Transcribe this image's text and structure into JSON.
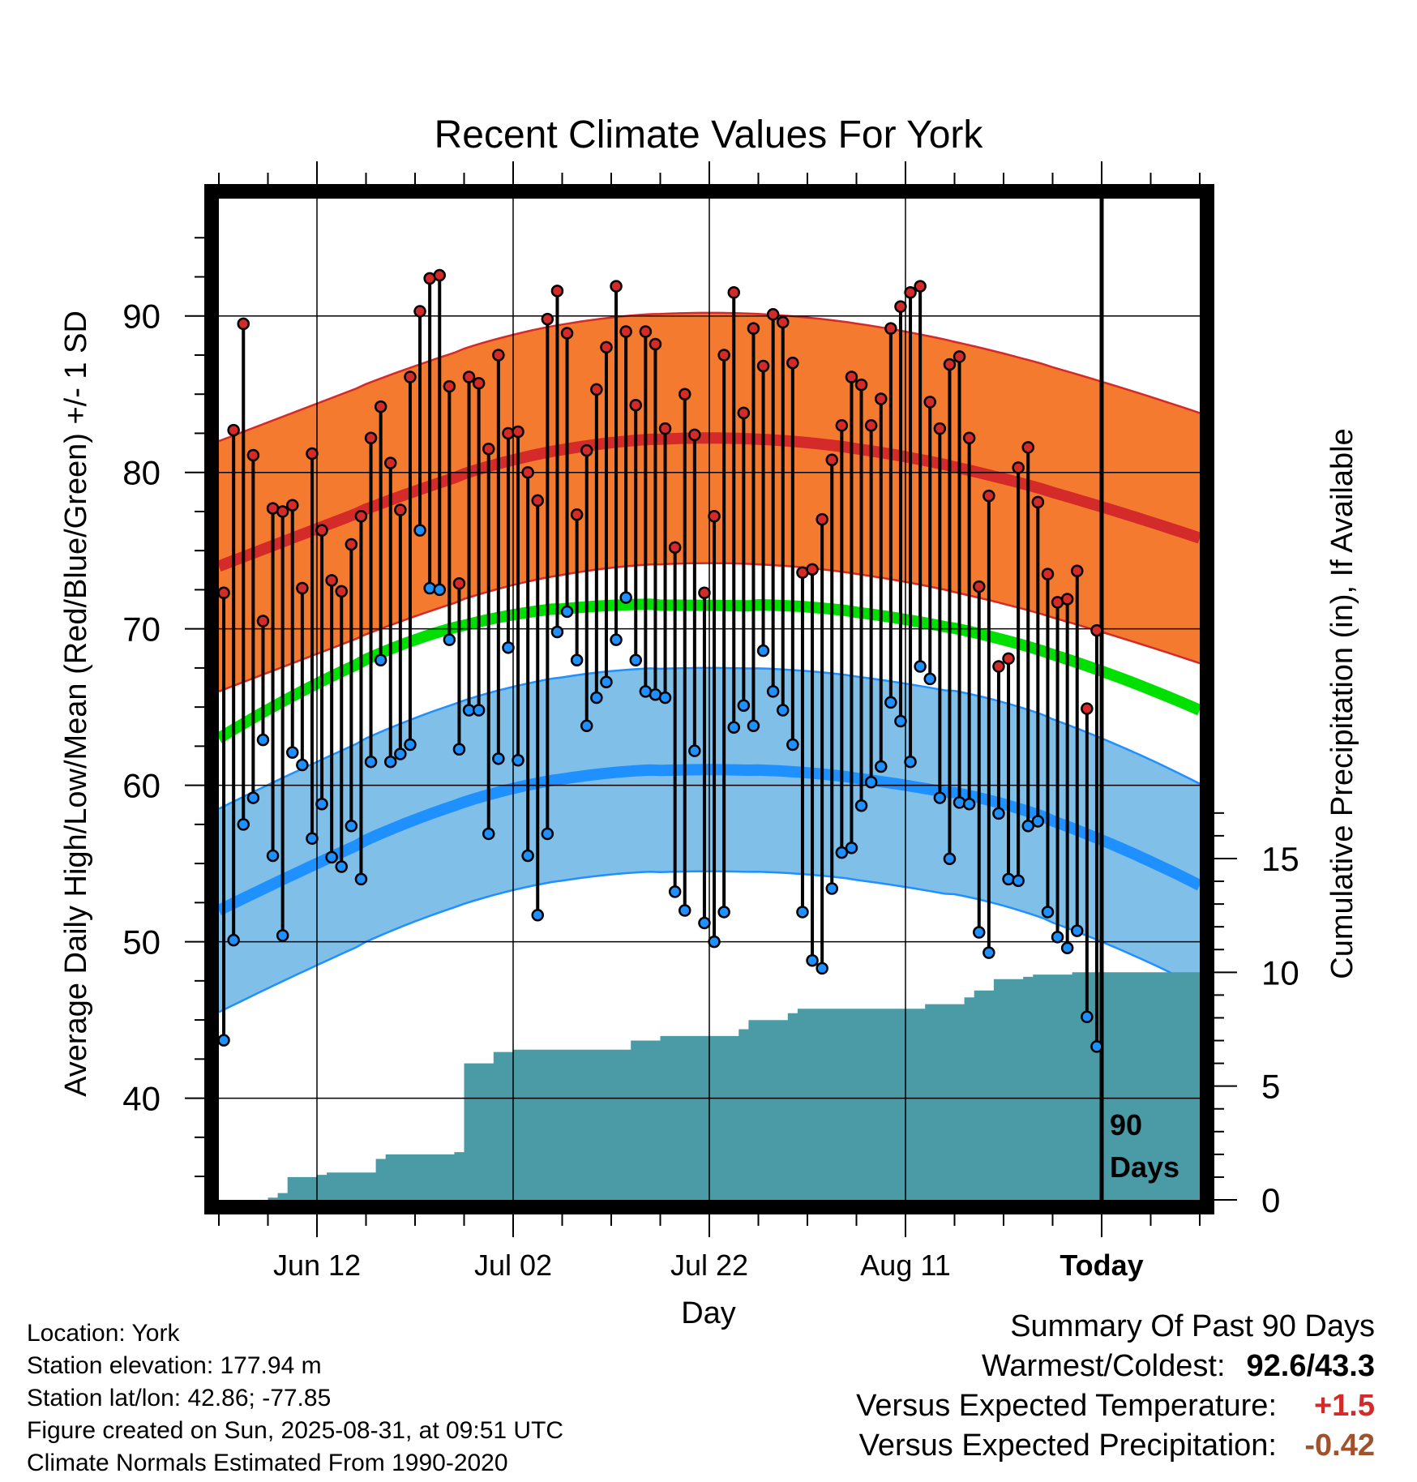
{
  "chart_data": {
    "type": "line",
    "title": "Recent Climate Values For York",
    "xlabel": "Day",
    "ylabel": "Average Daily High/Low/Mean (Red/Blue/Green) +/- 1 SD",
    "y2label": "Cumulative Precipitation (in), If Available",
    "ylim": [
      33.5,
      97.5
    ],
    "y2lim": [
      0,
      44
    ],
    "yticks": [
      40,
      50,
      60,
      70,
      80,
      90
    ],
    "y2ticks": [
      0,
      5,
      10,
      15
    ],
    "xlim": [
      0,
      100
    ],
    "xticks": [
      {
        "day": 10,
        "label": "Jun 12"
      },
      {
        "day": 30,
        "label": "Jul 02"
      },
      {
        "day": 50,
        "label": "Jul 22"
      },
      {
        "day": 70,
        "label": "Aug 11"
      },
      {
        "day": 90,
        "label": "Today"
      }
    ],
    "today_label": "90 Days",
    "colors": {
      "high": "#d42a2a",
      "high_band": "#f47a30",
      "low": "#1e90ff",
      "low_band": "#80bfe8",
      "mean": "#00e000",
      "precip": "#4a9ba6"
    },
    "normal_high": [
      74.0,
      76.4,
      78.8,
      80.8,
      81.9,
      82.2,
      81.9,
      81.0,
      79.6,
      77.8,
      75.8
    ],
    "normal_high_sd": 8.0,
    "normal_low": [
      52.0,
      55.0,
      57.8,
      59.8,
      60.8,
      61.0,
      60.8,
      60.0,
      58.8,
      56.5,
      53.6
    ],
    "normal_low_sd": 6.5,
    "normal_mean": [
      63.0,
      66.5,
      69.3,
      70.9,
      71.5,
      71.5,
      71.4,
      70.6,
      69.3,
      67.3,
      64.8
    ],
    "series": [
      {
        "name": "High",
        "values": [
          72.3,
          82.7,
          89.5,
          81.1,
          70.5,
          77.7,
          77.5,
          77.9,
          72.6,
          81.2,
          76.3,
          73.1,
          72.4,
          75.4,
          77.2,
          82.2,
          84.2,
          80.6,
          77.6,
          86.1,
          90.3,
          92.4,
          92.6,
          85.5,
          72.9,
          86.1,
          85.7,
          81.5,
          87.5,
          82.5,
          82.6,
          80.0,
          78.2,
          89.8,
          91.6,
          88.9,
          77.3,
          81.4,
          85.3,
          88.0,
          91.9,
          89.0,
          84.3,
          89.0,
          88.2,
          82.8,
          75.2,
          85.0,
          82.4,
          72.3,
          77.2,
          87.5,
          91.5,
          83.8,
          89.2,
          86.8,
          90.1,
          89.6,
          87.0,
          73.6,
          73.8,
          77.0,
          80.8,
          83.0,
          86.1,
          85.6,
          83.0,
          84.7,
          89.2,
          90.6,
          91.5,
          91.9,
          84.5,
          82.8,
          86.9,
          87.4,
          82.2,
          72.7,
          78.5,
          67.6,
          68.1,
          80.3,
          81.6,
          78.1,
          73.5,
          71.7,
          71.9,
          73.7,
          64.9,
          69.9
        ]
      },
      {
        "name": "Low",
        "values": [
          43.7,
          50.1,
          57.5,
          59.2,
          62.9,
          55.5,
          50.4,
          62.1,
          61.3,
          56.6,
          58.8,
          55.4,
          54.8,
          57.4,
          54.0,
          61.5,
          68.0,
          61.5,
          62.0,
          62.6,
          76.3,
          72.6,
          72.5,
          69.3,
          62.3,
          64.8,
          64.8,
          56.9,
          61.7,
          68.8,
          61.6,
          55.5,
          51.7,
          56.9,
          69.8,
          71.1,
          68.0,
          63.8,
          65.6,
          66.6,
          69.3,
          72.0,
          68.0,
          66.0,
          65.8,
          65.6,
          53.2,
          52.0,
          62.2,
          51.2,
          50.0,
          51.9,
          63.7,
          65.1,
          63.8,
          68.6,
          66.0,
          64.8,
          62.6,
          51.9,
          48.8,
          48.3,
          53.4,
          55.7,
          56.0,
          58.7,
          60.2,
          61.2,
          65.3,
          64.1,
          61.5,
          67.6,
          66.8,
          59.2,
          55.3,
          58.9,
          58.8,
          50.6,
          49.3,
          58.2,
          54.0,
          53.9,
          57.4,
          57.7,
          51.9,
          50.3,
          49.6,
          50.7,
          45.2,
          43.3
        ]
      },
      {
        "name": "Cumulative Precipitation",
        "values": [
          0.0,
          0.0,
          0.0,
          0.0,
          0.0,
          0.1,
          0.3,
          1.0,
          1.0,
          1.0,
          1.1,
          1.2,
          1.2,
          1.2,
          1.2,
          1.2,
          1.8,
          2.0,
          2.0,
          2.0,
          2.0,
          2.0,
          2.0,
          2.0,
          2.1,
          6.0,
          6.0,
          6.0,
          6.5,
          6.5,
          6.6,
          6.6,
          6.6,
          6.6,
          6.6,
          6.6,
          6.6,
          6.6,
          6.6,
          6.6,
          6.6,
          6.6,
          7.0,
          7.0,
          7.0,
          7.2,
          7.2,
          7.2,
          7.2,
          7.2,
          7.2,
          7.2,
          7.2,
          7.5,
          7.9,
          7.9,
          7.9,
          7.9,
          8.2,
          8.4,
          8.4,
          8.4,
          8.4,
          8.4,
          8.4,
          8.4,
          8.4,
          8.4,
          8.4,
          8.4,
          8.4,
          8.4,
          8.6,
          8.6,
          8.6,
          8.6,
          8.9,
          9.2,
          9.2,
          9.7,
          9.7,
          9.7,
          9.8,
          9.9,
          9.9,
          9.9,
          9.9,
          10.0,
          10.0,
          10.0,
          10.0
        ]
      }
    ]
  },
  "info": {
    "location": "Location: York",
    "elevation": "Station elevation: 177.94 m",
    "latlon": "Station lat/lon: 42.86; -77.85",
    "created": "Figure created on Sun, 2025-08-31, at 09:51 UTC",
    "normals": "Climate Normals Estimated From 1990-2020"
  },
  "summary": {
    "title": "Summary Of Past 90 Days",
    "warm_cold_label": "Warmest/Coldest:",
    "warm_cold_value": "92.6/43.3",
    "temp_label": "Versus Expected Temperature:",
    "temp_value": "+1.5",
    "temp_color": "#d42a2a",
    "precip_label": "Versus Expected Precipitation:",
    "precip_value": "-0.42",
    "precip_color": "#a0522d"
  }
}
